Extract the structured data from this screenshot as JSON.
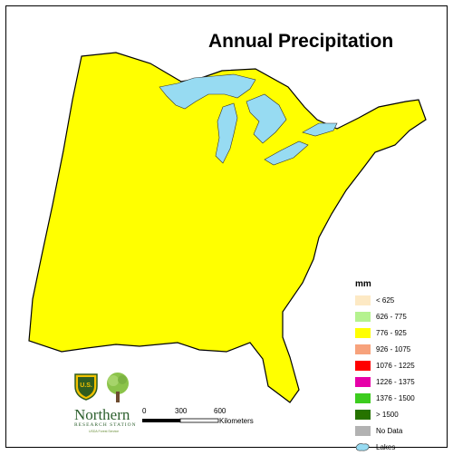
{
  "title": "Annual Precipitation",
  "legend": {
    "unit": "mm",
    "items": [
      {
        "label": "< 625",
        "color": "#fde9c4"
      },
      {
        "label": "626 - 775",
        "color": "#b5f28f"
      },
      {
        "label": "776 - 925",
        "color": "#ffff00"
      },
      {
        "label": "926 - 1075",
        "color": "#f7a27c"
      },
      {
        "label": "1076 - 1225",
        "color": "#ff0000"
      },
      {
        "label": "1226 - 1375",
        "color": "#e600a8"
      },
      {
        "label": "1376 - 1500",
        "color": "#3ccc1e"
      },
      {
        "label": "> 1500",
        "color": "#267300"
      },
      {
        "label": "No Data",
        "color": "#b2b2b2"
      }
    ],
    "lakes_label": "Lakes",
    "lakes_color": "#97dbf2"
  },
  "scale_bar": {
    "ticks": [
      "0",
      "300",
      "600"
    ],
    "unit": "Kilometers"
  },
  "organization": {
    "name": "Northern",
    "subtitle": "RESEARCH STATION",
    "tagline": "USDA Forest Service",
    "shield_text": "U.S."
  }
}
